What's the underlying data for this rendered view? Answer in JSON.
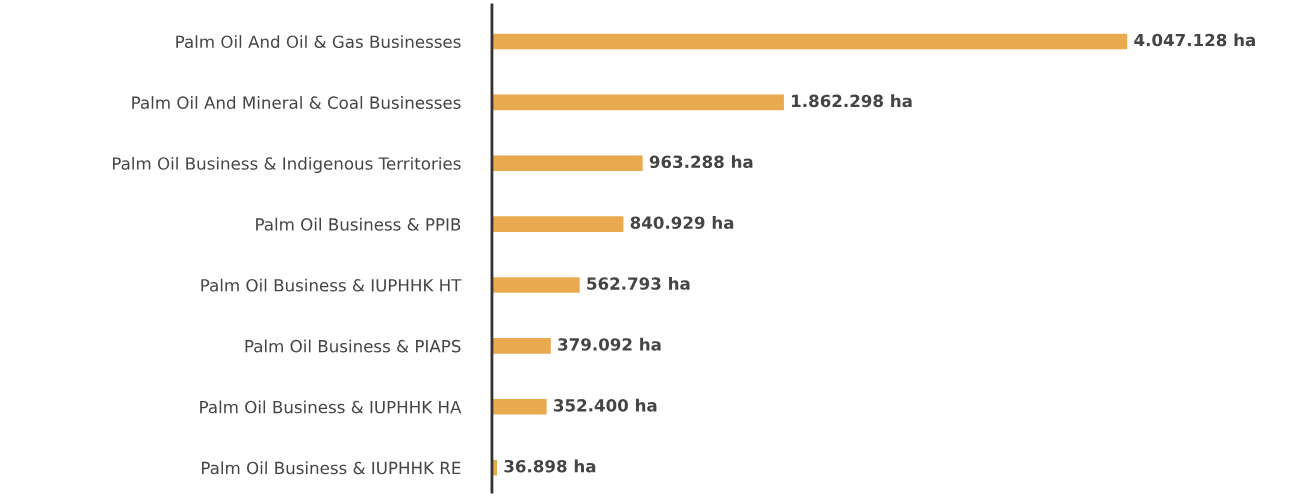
{
  "chart_data": {
    "type": "bar",
    "orientation": "horizontal",
    "categories": [
      "Palm Oil And Oil & Gas Businesses",
      "Palm Oil And Mineral & Coal Businesses",
      "Palm Oil Business & Indigenous Territories",
      "Palm Oil Business & PPIB",
      "Palm Oil Business & IUPHHK HT",
      "Palm Oil Business & PIAPS",
      "Palm Oil Business & IUPHHK HA",
      "Palm Oil Business & IUPHHK RE"
    ],
    "values": [
      4047128,
      1862298,
      963288,
      840929,
      562793,
      379092,
      352400,
      36898
    ],
    "value_labels": [
      "4.047.128 ha",
      "1.862.298 ha",
      "963.288 ha",
      "840.929 ha",
      "562.793 ha",
      "379.092 ha",
      "352.400 ha",
      "36.898 ha"
    ],
    "color": "#e8a94f",
    "grid": false,
    "legend": false
  }
}
